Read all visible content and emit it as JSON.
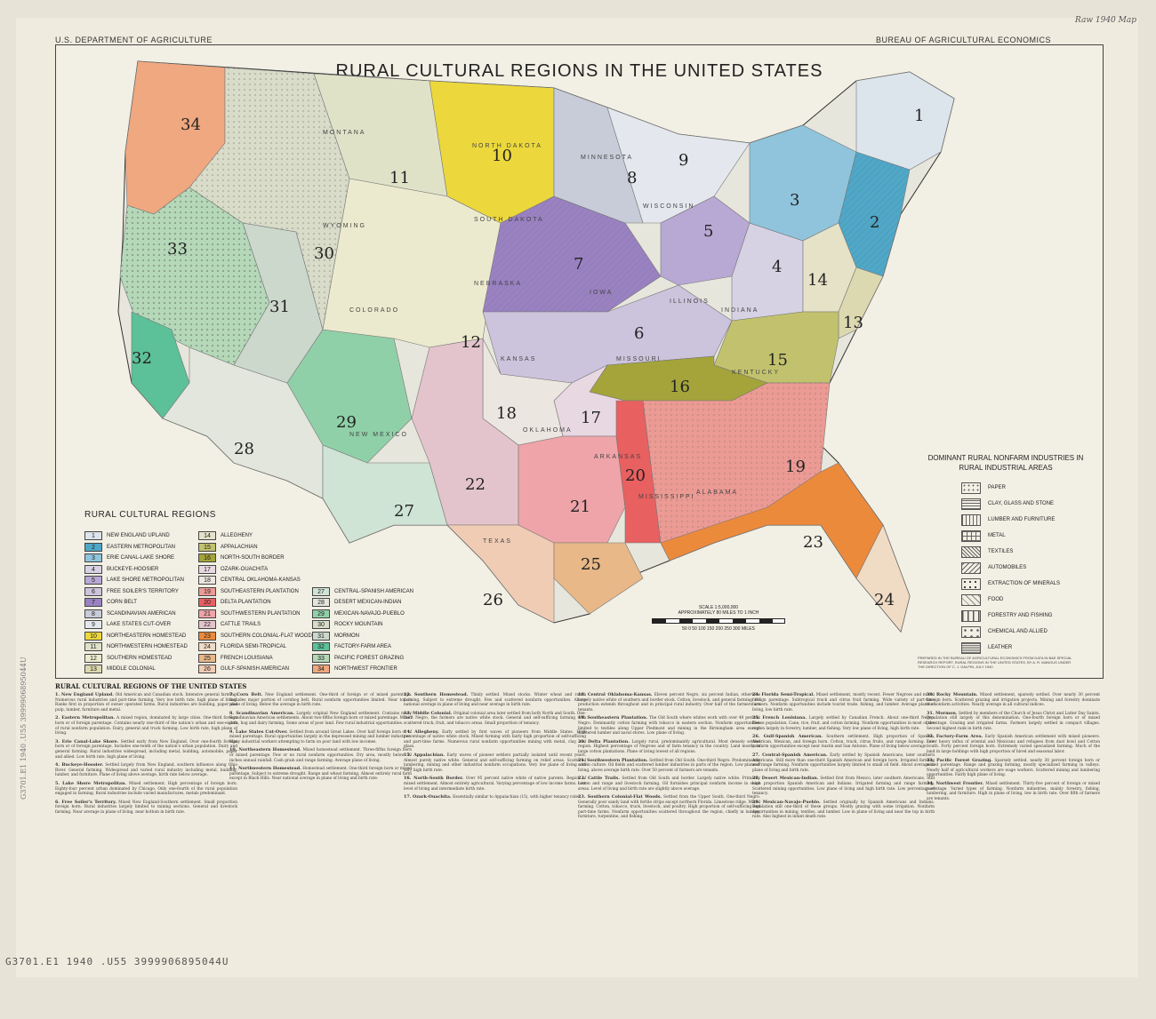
{
  "header": {
    "left": "U.S. DEPARTMENT OF AGRICULTURE",
    "right": "BUREAU OF AGRICULTURAL ECONOMICS"
  },
  "title": "RURAL CULTURAL REGIONS IN THE UNITED STATES",
  "state_labels": [
    "NORTH DAKOTA",
    "SOUTH DAKOTA",
    "NEBRASKA",
    "KANSAS",
    "OKLAHOMA",
    "TEXAS",
    "IOWA",
    "MISSOURI",
    "ARKANSAS",
    "MISSISSIPPI",
    "ALABAMA",
    "MINNESOTA",
    "WISCONSIN",
    "ILLINOIS",
    "INDIANA",
    "MONTANA",
    "WYOMING",
    "COLORADO",
    "NEW MEXICO",
    "KENTUCKY"
  ],
  "region_numbers": [
    "1",
    "2",
    "3",
    "4",
    "5",
    "6",
    "7",
    "8",
    "9",
    "10",
    "11",
    "12",
    "13",
    "14",
    "15",
    "16",
    "17",
    "18",
    "19",
    "20",
    "21",
    "22",
    "23",
    "24",
    "25",
    "26",
    "27",
    "28",
    "29",
    "30",
    "31",
    "32",
    "33",
    "34"
  ],
  "legend": {
    "title": "RURAL CULTURAL REGIONS",
    "items": [
      {
        "num": "1",
        "label": "NEW ENGLAND UPLAND",
        "color": "#dce4ec"
      },
      {
        "num": "2",
        "label": "EASTERN METROPOLITAN",
        "color": "#4fa8c8"
      },
      {
        "num": "3",
        "label": "ERIE CANAL-LAKE SHORE",
        "color": "#8fc4dc"
      },
      {
        "num": "4",
        "label": "BUCKEYE-HOOSIER",
        "color": "#d6d2e4"
      },
      {
        "num": "5",
        "label": "LAKE SHORE METROPOLITAN",
        "color": "#b8a8d4"
      },
      {
        "num": "6",
        "label": "FREE SOILER'S TERRITORY",
        "color": "#ccc4dc"
      },
      {
        "num": "7",
        "label": "CORN BELT",
        "color": "#9a82c2"
      },
      {
        "num": "8",
        "label": "SCANDINAVIAN AMERICAN",
        "color": "#c8ccd8"
      },
      {
        "num": "9",
        "label": "LAKE STATES CUT-OVER",
        "color": "#e4e8ee"
      },
      {
        "num": "10",
        "label": "NORTHEASTERN HOMESTEAD",
        "color": "#ecd83c"
      },
      {
        "num": "11",
        "label": "NORTHWESTERN HOMESTEAD",
        "color": "#e0e2c8"
      },
      {
        "num": "12",
        "label": "SOUTHERN HOMESTEAD",
        "color": "#eceace"
      },
      {
        "num": "13",
        "label": "MIDDLE COLONIAL",
        "color": "#dcd8b0"
      },
      {
        "num": "14",
        "label": "ALLEGHENY",
        "color": "#e6e2c8"
      },
      {
        "num": "15",
        "label": "APPALACHIAN",
        "color": "#c2c26e"
      },
      {
        "num": "16",
        "label": "NORTH-SOUTH BORDER",
        "color": "#a4a43a"
      },
      {
        "num": "17",
        "label": "OZARK-OUACHITA",
        "color": "#e8d8e2"
      },
      {
        "num": "18",
        "label": "CENTRAL OKLAHOMA-KANSAS",
        "color": "#ece6e0"
      },
      {
        "num": "19",
        "label": "SOUTHEASTERN PLANTATION",
        "color": "#ec9a94"
      },
      {
        "num": "20",
        "label": "DELTA PLANTATION",
        "color": "#e86060"
      },
      {
        "num": "21",
        "label": "SOUTHWESTERN PLANTATION",
        "color": "#eea4a8"
      },
      {
        "num": "22",
        "label": "CATTLE TRAILS",
        "color": "#e4c4cc"
      },
      {
        "num": "23",
        "label": "SOUTHERN COLONIAL-FLAT WOODS",
        "color": "#ec8a3c"
      },
      {
        "num": "24",
        "label": "FLORIDA SEMI-TROPICAL",
        "color": "#f0dcc4"
      },
      {
        "num": "25",
        "label": "FRENCH LOUISIANA",
        "color": "#e8b888"
      },
      {
        "num": "26",
        "label": "GULF-SPANISH AMERICAN",
        "color": "#f0ccb4"
      },
      {
        "num": "27",
        "label": "CENTRAL-SPANISH AMERICAN",
        "color": "#cfe4d4"
      },
      {
        "num": "28",
        "label": "DESERT MEXICAN-INDIAN",
        "color": "#e2e6dc"
      },
      {
        "num": "29",
        "label": "MEXICAN-NAVAJO-PUEBLO",
        "color": "#90d0a8"
      },
      {
        "num": "30",
        "label": "ROCKY MOUNTAIN",
        "color": "#d8dcc8"
      },
      {
        "num": "31",
        "label": "MORMON",
        "color": "#ccd8cc"
      },
      {
        "num": "32",
        "label": "FACTORY-FARM AREA",
        "color": "#5cc098"
      },
      {
        "num": "33",
        "label": "PACIFIC FOREST GRAZING",
        "color": "#b4d8b8"
      },
      {
        "num": "34",
        "label": "NORTHWEST FRONTIER",
        "color": "#f0a880"
      }
    ]
  },
  "industries": {
    "title": "DOMINANT RURAL NONFARM INDUSTRIES IN RURAL INDUSTRIAL AREAS",
    "items": [
      "PAPER",
      "CLAY, GLASS AND STONE",
      "LUMBER AND FURNITURE",
      "METAL",
      "TEXTILES",
      "AUTOMOBILES",
      "EXTRACTION OF MINERALS",
      "FOOD",
      "FORESTRY AND FISHING",
      "CHEMICAL AND ALLIED",
      "LEATHER"
    ]
  },
  "scale": {
    "label": "SCALE 1:5,000,000",
    "sub": "APPROXIMATELY 80 MILES TO 1 INCH",
    "ticks": "50 0 50 100 150 200 250 300 MILES"
  },
  "prepared": "PREPARED IN THE BUREAU OF AGRICULTURAL ECONOMICS FROM DATA IN BAE SPECIAL RESEARCH REPORT, RURAL REGIONS IN THE UNITED STATES, BY A. R. MANGUS UNDER THE DIRECTION OF C. J. GALPIN, JULY 1940",
  "text_title": "RURAL CULTURAL REGIONS OF THE UNITED STATES",
  "descriptions": [
    {
      "h": "1. New England Upland.",
      "t": "Old American and Canadian stock. Intensive general farming. Numerous rural industries and part-time farming. Very low birth rate, high plane of living. Ranks first in proportion of owner operated farms. Rural industries are building, paper and pulp, lumber, furniture and metal."
    },
    {
      "h": "2. Eastern Metropolitan.",
      "t": "A mixed region, dominated by large cities. One-third foreign born or of foreign parentage. Contains nearly one-third of the nation's urban and one-eighth of rural nonfarm population. Dairy, general and truck farming. Low birth rate, high plane of living."
    },
    {
      "h": "3. Erie Canal-Lake Shore.",
      "t": "Settled early from New England. Over one-fourth foreign born or of foreign parentage. Includes one-tenth of the nation's urban population. Dairy and general farming. Rural industries widespread, including metal, building, automobile, paper and allied. Low birth rate, high plane of living."
    },
    {
      "h": "4. Buckeye-Hoosier.",
      "t": "Settled largely from New England, southern influence along Ohio River. General farming. Widespread and varied rural industry including metal, building, lumber, and furniture. Plane of living above average, birth rate below average."
    },
    {
      "h": "5. Lake Shore Metropolitan.",
      "t": "Mixed settlement. High percentage of foreign born. Eighty-four percent urban dominated by Chicago. Only one-fourth of the rural population engaged in farming. Rural industries include varied manufactures, metals predominant."
    },
    {
      "h": "6. Free Soiler's Territory.",
      "t": "Mixed New England-Southern settlement. Small proportion foreign born. Rural industries largely limited to mining sections. General and livestock farming. Near average in plane of living, near bottom in birth rate."
    },
    {
      "h": "7. Corn Belt.",
      "t": "New England settlement. One-third of foreign or of mixed parentage. Includes major portion of cornhog belt. Rural nonfarm opportunities limited. Near top in plane of living. Below the average in birth rate."
    },
    {
      "h": "8. Scandinavian American.",
      "t": "Largely original New England settlement. Contains many Scandinavian American settlements. About two-fifths foreign born or mixed parentage. Mixed corn, hog and dairy farming. Some areas of poor land. Few rural industrial opportunities."
    },
    {
      "h": "9. Lake States Cut-Over.",
      "t": "Settled from around Great Lakes. Over half foreign born or of mixed parentage. Rural opportunities largely in the depressed mining and lumber industries. Many industrial workers attempting to farm on poor land with low incomes."
    },
    {
      "h": "10. Northeastern Homestead.",
      "t": "Mixed homestead settlement. Three-fifths foreign born or mixed parentage. Few or no rural nonfarm opportunities. Dry area, mostly below 20 inches annual rainfall. Cash grain and range farming. Average plane of living."
    },
    {
      "h": "11. Northwestern Homestead.",
      "t": "Homestead settlement. One-third foreign born or mixed parentage. Subject to extreme drought. Range and wheat farming. Almost entirely rural farm except in Black Hills. Near national average in plane of living and birth rate."
    },
    {
      "h": "12. Southern Homestead.",
      "t": "Thinly settled. Mixed stocks. Winter wheat and ranch farming. Subject to extreme drought. Few and scattered nonfarm opportunities. Above national average in plane of living and near average in birth rate."
    },
    {
      "h": "13. Middle Colonial.",
      "t": "Original colonial area later settled from both North and South. One-third Negro, the farmers are native white stock. General and self-sufficing farming with scattered truck, fruit, and tobacco areas. Small proportion of tenancy."
    },
    {
      "h": "14. Allegheny.",
      "t": "Early settled by first waves of pioneers from Middle States. High percentage of native white stock. Mixed farming with fairly high proportion of self-sufficing and part-time farms. Numerous rural nonfarm opportunities mining with metal, clay, and glass."
    },
    {
      "h": "15. Appalachian.",
      "t": "Early waves of pioneer settlers partially isolated until recent years. Almost purely native white. General and self-sufficing farming on relief areas. Scattered lumbering, mining and other industrial nonfarm occupations. Very low plane of living and very high birth rate."
    },
    {
      "h": "16. North-South Border.",
      "t": "Over 95 percent native white of native parents. Region of mixed settlement. Almost entirely agricultural. Varying percentage of low income farms. Low level of living and intermediate birth rate."
    },
    {
      "h": "17. Ozark-Ouachita.",
      "t": "Essentially similar to Appalachian (15), with higher tenancy rates."
    },
    {
      "h": "18. Central Oklahoma-Kansas.",
      "t": "Eleven percent Negro, six percent Indian, otherwise largely native white of southern and border stock. Cotton, livestock, and general farming. Oil production extends throughout and in principal rural industry. Over half of the farmers are tenants."
    },
    {
      "h": "19. Southeastern Plantation.",
      "t": "The Old South where whites work with over 40 percent Negro. Dominantly cotton farming with tobacco in eastern section. Nonfarm opportunities limited to textiles along Upper Piedmont and mining in the Birmingham area except scattered lumber and naval stores. Low plane of living."
    },
    {
      "h": "20. Delta Plantation.",
      "t": "Largely rural, predominantly agricultural. Most densely settled region. Highest percentage of Negroes and of farm tenancy in the country. Land mostly in large cotton plantations. Plane of living lowest of all regions."
    },
    {
      "h": "21. Southwestern Plantation.",
      "t": "Settled from Old South. One-third Negro. Predominantly cotton culture. Oil fields and scattered lumber industries in parts of the region. Low plane of living, above average birth rate. Over 50 percent of farmers are tenants."
    },
    {
      "h": "22. Cattle Trails.",
      "t": "Settled from Old South and border. Largely native white. Primarily cotton and range and livestock farming. Oil furnishes principal nonfarm income in some areas. Level of living and birth rate are slightly above average."
    },
    {
      "h": "23. Southern Colonial-Flat Woods.",
      "t": "Settled from the Upper South. One-third Negro. Generally poor sandy land with fertile strips except northern Florida. Limestone ridge. Mixed farming. Cotton, tobacco, truck, livestock, and poultry. High proportion of self-sufficing and part-time farms. Nonfarm opportunities scattered throughout the region, chiefly in lumber, furniture, turpentine, and fishing."
    },
    {
      "h": "24. Florida Semi-Tropical.",
      "t": "Mixed settlement, mostly recent. Fewer Negroes and mixed foreign parentage. Subtropical truck and citrus fruit farming. Wide variety of part-time farmers. Nonfarm opportunities include tourist trade, fishing, and lumber. Average plane of living, low birth rate."
    },
    {
      "h": "25. French Louisiana.",
      "t": "Largely settled by Canadian French. About one-third Negro. Dense population. Cane, rice, fruit, and cotton farming. Nonfarm opportunities in most of the region largely in forestry, lumber, and fishing. Very low plane of living, high birth rate."
    },
    {
      "h": "26. Gulf-Spanish American.",
      "t": "Southern settlement. High proportion of Spanish, American, Mexican, and foreign born. Cotton, truck, citrus fruits, and range farming. Few nonfarm opportunities except near Austin and San Antonio. Plane of living below average."
    },
    {
      "h": "27. Central-Spanish American.",
      "t": "Early settled by Spanish Americans, later southern Americans. Still more than one-third Spanish American and foreign born. Irrigated farming and range farming. Nonfarm opportunities largely limited to small oil field. About average in plane of living and birth rate."
    },
    {
      "h": "28. Desert Mexican-Indian.",
      "t": "Settled first from Mexico, later southern Americans. Still high proportion Spanish American and Indians. Irrigated farming and range farming. Scattered mining opportunities. Low plane of living and high birth rate. Low percentage of tenancy."
    },
    {
      "h": "29. Mexican-Navajo-Pueblo.",
      "t": "Settled originally by Spanish Americans and Indians. Population still one-third of these groups. Mostly grazing with some irrigation. Nonfarm opportunities in mining, textiles, and lumber. Low in plane of living and near the top in birth rate. Also highest in infant death rate."
    },
    {
      "h": "30. Rocky Mountain.",
      "t": "Mixed settlement, sparsely settled. Over nearly 30 percent foreign born. Scattered grazing and irrigation projects. Mining and forestry dominate the nonfarm activities. Nearly average in all cultural indices."
    },
    {
      "h": "31. Mormon.",
      "t": "Settled by members of the Church of Jesus Christ and Latter Day Saints. Population still largely of this denomination. One-fourth foreign born or of mixed parentage. Grazing and irrigated farms. Farmers largely settled in compact villages. Second highest rank in birth rate."
    },
    {
      "h": "32. Factory-Farm Area.",
      "t": "Early Spanish American settlement with mixed pioneers. Later heavy influx of oriental and Mexicans and refugees from dust bowl and Cotton South. Forty percent foreign born. Extremely varied specialized farming. Much of the land in large holdings with high proportion of hired and seasonal labor."
    },
    {
      "h": "33. Pacific Forest Grazing.",
      "t": "Sparsely settled, nearly 30 percent foreign born or mixed parentage. Range and grazing farming, mostly specialized farming in valleys. Nearly half of agricultural workers are wage workers. Scattered mining and lumbering opportunities. Fairly high plane of living."
    },
    {
      "h": "34. Northwest Frontier.",
      "t": "Mixed settlement. Thirty-five percent of foreign or mixed parentage. Varied types of farming. Nonfarm industries, mainly forestry, fishing, lumbering, and furniture. High in plane of living, low in birth rate. Over fifth of farmers are tenants."
    }
  ],
  "side_stamp": "G3701.E1 1940 .U55   3999906895044U",
  "corner_note": "Raw 1940 Map"
}
